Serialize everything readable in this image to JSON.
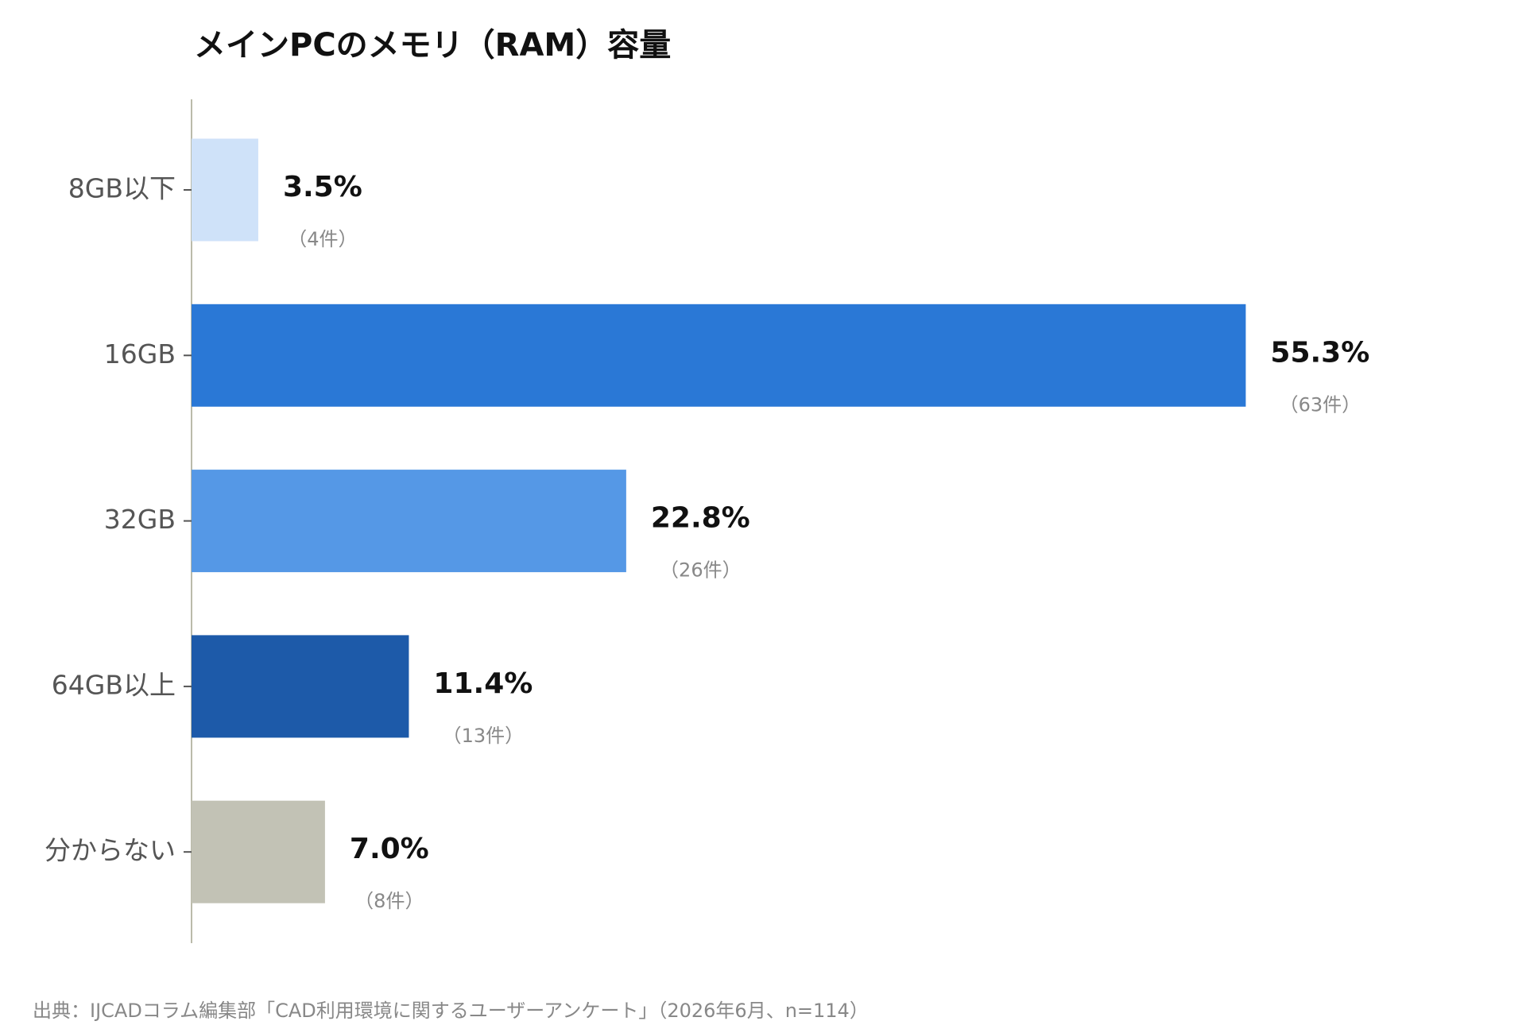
{
  "chart_data": {
    "type": "bar",
    "orientation": "horizontal",
    "title": "メインPCのメモリ（RAM）容量",
    "categories": [
      "8GB以下",
      "16GB",
      "32GB",
      "64GB以上",
      "分からない"
    ],
    "values": [
      3.5,
      55.3,
      22.8,
      11.4,
      7.0
    ],
    "value_labels": [
      "3.5%",
      "55.3%",
      "22.8%",
      "11.4%",
      "7.0%"
    ],
    "counts": [
      4,
      63,
      26,
      13,
      8
    ],
    "count_labels": [
      "（4件）",
      "（63件）",
      "（26件）",
      "（13件）",
      "（8件）"
    ],
    "colors": [
      "#cfe2f9",
      "#2a78d6",
      "#5598e6",
      "#1d5aa9",
      "#c2c2b5"
    ],
    "xlim": [
      0,
      70
    ],
    "source": "出典：IJCADコラム編集部「CAD利用環境に関するユーザーアンケート」（2026年6月、n=114）"
  }
}
